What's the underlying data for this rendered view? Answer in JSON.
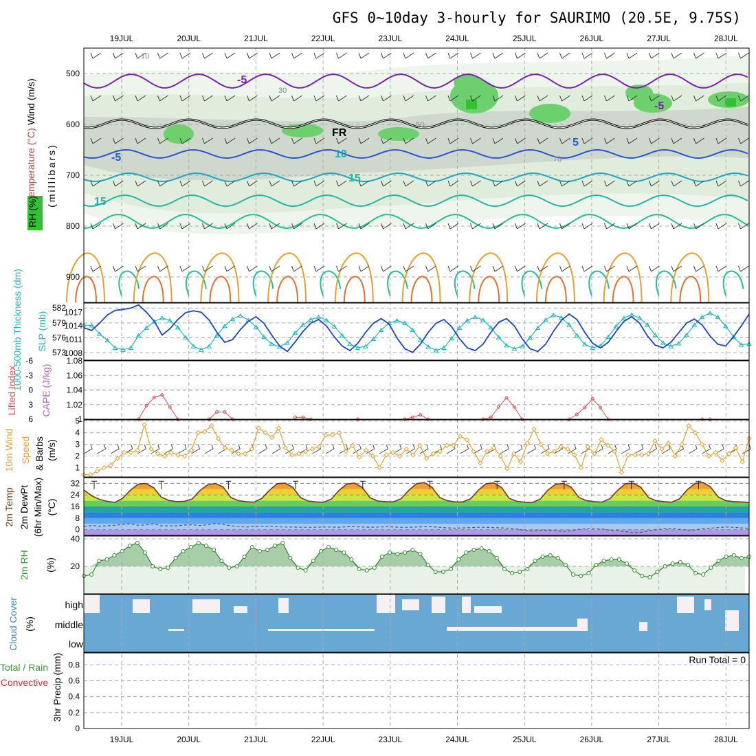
{
  "title": "GFS 0~10day 3-hourly for SAURIMO (20.5E, 9.75S)",
  "colors": {
    "thickness": "#22b5c0",
    "slp": "#1a44c8",
    "lifted_index": "#e05050",
    "wind_speed": "#e7a030",
    "barbs": "#444444",
    "rh2m": "#2e8b2e",
    "rh2m_fill": "#a9cda9",
    "cloud": "#6aa8d4",
    "dewpoint": "#555555",
    "temp_line": "#6b3b1b",
    "temp_purple": "#7040c0",
    "rh_label": "#3a9a3a",
    "precip_label": "#d03030"
  },
  "chart_data": [
    {
      "type": "heatmap",
      "panel": "upper-air cross-section",
      "x_dates": [
        "19JUL",
        "20JUL",
        "21JUL",
        "22JUL",
        "23JUL",
        "24JUL",
        "25JUL",
        "26JUL",
        "27JUL",
        "28JUL"
      ],
      "ylabel": "(millibars)",
      "legend_labels": [
        "Wind (m/s)",
        "Temperature (°C)",
        "RH (%)"
      ],
      "yticks": [
        500,
        600,
        700,
        800,
        900
      ],
      "ylim": [
        1000,
        450
      ],
      "rh_contour_labels": [
        "10",
        "30",
        "50",
        "70"
      ],
      "temp_contour_labels": [
        {
          "label": "-5",
          "color": "#7a1fb0"
        },
        {
          "label": "FR",
          "color": "#000000"
        },
        {
          "label": "-5",
          "color": "#7a1fb0"
        },
        {
          "label": "-5",
          "color": "#2255dd"
        },
        {
          "label": "5",
          "color": "#2255dd"
        },
        {
          "label": "10",
          "color": "#22a5c0"
        },
        {
          "label": "15",
          "color": "#22b5a0"
        },
        {
          "label": "15",
          "color": "#22b5a0"
        }
      ]
    },
    {
      "type": "line",
      "panel": "thickness-slp",
      "ylabel_left": "1000-500mb Thickness (dm)",
      "ylabel_right": "SLP (mb)",
      "yticks_left": [
        573,
        576,
        579,
        582
      ],
      "yticks_right": [
        1008,
        1011,
        1014,
        1017
      ],
      "series": [
        {
          "name": "1000-500mb Thickness (dm)",
          "values": [
            578.6,
            578.5,
            576.8,
            575.5,
            574.0,
            573.6,
            574.0,
            576.5,
            578.0,
            579.3,
            580.0,
            579.5,
            578.1,
            576.1,
            574.3,
            573.6,
            574.3,
            576.5,
            578.4,
            579.8,
            580.5,
            579.6,
            578.2,
            576.2,
            574.8,
            574.2,
            575.0,
            577.0,
            578.6,
            579.7,
            580.2,
            579.6,
            578.3,
            576.5,
            574.8,
            574.0,
            574.3,
            575.8,
            577.6,
            579.0,
            579.5,
            579.0,
            577.6,
            575.6,
            574.2,
            573.5,
            574.0,
            575.9,
            578.0,
            579.5,
            580.2,
            579.6,
            578.1,
            576.1,
            574.5,
            573.8,
            574.3,
            576.0,
            578.0,
            579.6,
            580.6,
            580.1,
            578.6,
            576.5,
            574.7,
            574.0,
            574.4,
            576.2,
            578.3,
            580.0,
            580.7,
            580.0,
            578.6,
            576.6,
            575.0,
            574.3,
            574.9,
            576.6,
            578.6,
            580.2,
            581.0,
            580.2,
            578.4,
            576.2,
            574.6,
            574.8
          ]
        },
        {
          "name": "SLP (mb)",
          "values": [
            1013.6,
            1013.0,
            1014.6,
            1016.4,
            1017.4,
            1017.6,
            1017.9,
            1018.6,
            1017.0,
            1015.0,
            1012.0,
            1013.4,
            1015.4,
            1016.9,
            1017.3,
            1017.0,
            1015.3,
            1012.6,
            1010.4,
            1011.0,
            1013.2,
            1015.0,
            1016.0,
            1014.6,
            1012.0,
            1009.6,
            1008.4,
            1010.5,
            1012.8,
            1014.6,
            1015.4,
            1014.0,
            1011.6,
            1009.6,
            1008.6,
            1010.2,
            1012.6,
            1014.6,
            1015.6,
            1014.4,
            1011.4,
            1009.0,
            1008.2,
            1010.0,
            1012.6,
            1014.6,
            1015.4,
            1013.8,
            1011.2,
            1009.2,
            1008.6,
            1010.0,
            1012.6,
            1014.8,
            1015.6,
            1014.0,
            1011.2,
            1009.0,
            1008.4,
            1010.0,
            1012.8,
            1015.2,
            1016.6,
            1015.4,
            1012.6,
            1010.2,
            1009.2,
            1010.4,
            1012.8,
            1015.0,
            1016.0,
            1014.6,
            1011.8,
            1009.8,
            1009.2,
            1010.4,
            1012.5,
            1014.6,
            1015.5,
            1014.2,
            1011.8,
            1010.0,
            1009.6,
            1011.6,
            1014.0,
            1016.6
          ]
        }
      ]
    },
    {
      "type": "line",
      "panel": "cape-li",
      "ylabel_left": "Lifted Index",
      "ylabel_right": "CAPE (J/kg)",
      "yticks_left": [
        "-6",
        "-3",
        "0",
        "3",
        "6"
      ],
      "yticks_right": [
        "1",
        "1.02",
        "1.04",
        "1.06",
        "1.08"
      ],
      "series": [
        {
          "name": "Lifted Index",
          "values": [
            null,
            null,
            null,
            null,
            null,
            null,
            null,
            6,
            3.2,
            1.5,
            1.0,
            3.5,
            6,
            null,
            null,
            null,
            6,
            4.5,
            4.5,
            6,
            null,
            null,
            null,
            null,
            null,
            null,
            null,
            5.6,
            5.6,
            6,
            null,
            null,
            null,
            null,
            null,
            6,
            null,
            null,
            null,
            null,
            null,
            6,
            5.6,
            5.1,
            6,
            null,
            null,
            null,
            null,
            null,
            null,
            6,
            5.6,
            3.5,
            1.6,
            3.5,
            6,
            null,
            null,
            null,
            null,
            null,
            6,
            5.0,
            3.6,
            1.8,
            3.6,
            6,
            null,
            null,
            null,
            null,
            null,
            null,
            null,
            null,
            null,
            null,
            null,
            6,
            6,
            null,
            null,
            null,
            null,
            null
          ]
        }
      ]
    },
    {
      "type": "line",
      "panel": "10m-wind",
      "ylabel": "10m Wind Speed (m/s) & Barbs",
      "yticks": [
        1,
        2,
        3,
        4,
        5
      ],
      "series": [
        {
          "name": "10m Wind Speed (m/s)",
          "values": [
            0.4,
            0.4,
            0.7,
            1.0,
            1.2,
            1.8,
            2.3,
            2.3,
            2.5,
            4.7,
            2.6,
            2.2,
            2.0,
            2.3,
            2.1,
            2.0,
            2.5,
            4.0,
            4.1,
            4.6,
            3.5,
            2.7,
            2.5,
            2.2,
            2.2,
            2.6,
            4.4,
            4.0,
            3.6,
            4.4,
            2.7,
            2.1,
            2.2,
            2.4,
            2.6,
            2.8,
            3.8,
            3.8,
            4.0,
            2.4,
            2.9,
            1.9,
            2.5,
            2.0,
            1.0,
            2.1,
            2.3,
            2.0,
            2.6,
            2.1,
            2.9,
            1.8,
            2.2,
            2.4,
            2.9,
            2.9,
            3.7,
            3.4,
            2.4,
            1.4,
            2.4,
            2.7,
            2.0,
            0.9,
            2.2,
            1.5,
            3.1,
            4.3,
            3.0,
            2.2,
            2.4,
            2.8,
            2.6,
            2.1,
            1.0,
            2.8,
            2.2,
            3.4,
            2.9,
            2.4,
            0.6,
            2.1,
            2.1,
            2.1,
            2.2,
            3.3,
            2.6,
            3.1,
            2.0,
            3.0,
            4.6,
            4.0,
            3.0,
            2.0,
            2.3,
            1.6,
            2.2,
            2.7,
            1.5,
            3.5
          ]
        }
      ]
    },
    {
      "type": "area",
      "panel": "temperature",
      "ylabel": "2m Temp / 2m DewPt (6hr Min/Max) (°C)",
      "yticks": [
        0,
        8,
        16,
        24,
        32
      ],
      "series": [
        {
          "name": "2m Temp",
          "values": [
            27.5,
            23.5,
            21.0,
            19.6,
            18.8,
            21.6,
            27.2,
            31.5,
            32.0,
            29.2,
            22.5,
            20.2,
            19.4,
            19.6,
            21.2,
            27.0,
            31.0,
            32.0,
            29.6,
            22.3,
            20.0,
            19.4,
            19.0,
            21.6,
            27.3,
            31.8,
            32.2,
            29.4,
            22.2,
            19.8,
            19.2,
            19.0,
            21.2,
            27.2,
            31.6,
            32.2,
            29.2,
            22.0,
            19.8,
            19.4,
            19.2,
            21.4,
            27.2,
            31.8,
            32.6,
            29.4,
            22.2,
            20.0,
            19.2,
            19.2,
            21.4,
            27.4,
            31.8,
            32.4,
            29.2,
            21.6,
            19.6,
            19.0,
            18.8,
            21.2,
            27.4,
            31.5,
            32.0,
            29.4,
            22.2,
            20.0,
            19.4,
            19.1,
            21.4,
            27.2,
            31.8,
            32.2,
            29.4,
            22.2,
            20.0,
            19.4,
            19.0,
            21.4,
            27.6,
            32.0,
            32.8,
            29.6,
            22.6,
            20.0,
            19.4,
            19.2,
            18.9
          ]
        },
        {
          "name": "2m DewPt",
          "values": [
            2.2,
            2.8,
            2.4,
            2.6,
            3.0,
            3.6,
            4.0,
            3.0,
            3.2,
            4.0,
            2.6,
            2.6,
            2.6,
            3.2,
            3.4,
            2.8,
            3.4,
            4.2,
            3.6,
            2.6,
            2.2,
            1.8,
            2.2,
            2.4,
            2.4,
            2.0,
            1.8,
            1.8,
            1.6,
            1.6,
            1.6,
            1.8,
            1.8,
            1.6,
            2.0,
            2.0,
            1.8,
            1.6,
            1.8,
            2.0,
            1.8,
            1.6,
            1.6,
            1.8,
            2.0,
            2.0,
            1.6,
            1.2,
            1.0,
            1.2,
            1.4,
            1.6,
            1.6,
            1.4,
            1.2,
            1.0,
            0.4,
            -0.6,
            -1.0,
            -0.4,
            -0.4,
            -0.8,
            -1.2,
            -0.8,
            0.2,
            0.6,
            0.6,
            0.4,
            -0.4,
            -0.8,
            -1.4,
            -2.2,
            -1.8,
            -1.0,
            0.0,
            0.6,
            0.8,
            0.2,
            -0.4,
            -0.2,
            0.6,
            1.0,
            1.4,
            1.8,
            1.6,
            1.2,
            1.0
          ]
        }
      ]
    },
    {
      "type": "area",
      "panel": "2m-rh",
      "ylabel": "2m RH (%)",
      "yticks": [
        20,
        40
      ],
      "series": [
        {
          "name": "2m RH",
          "values": [
            13,
            14,
            24,
            25,
            28,
            31,
            35,
            37,
            30,
            20,
            18,
            19,
            26,
            31,
            34,
            37,
            35,
            32,
            24,
            19,
            20,
            27,
            34,
            31,
            32,
            35,
            37,
            26,
            19,
            17,
            24,
            31,
            34,
            32,
            30,
            25,
            18,
            17,
            19,
            27,
            30,
            29,
            30,
            32,
            29,
            21,
            16,
            16,
            18,
            25,
            30,
            32,
            33,
            31,
            26,
            18,
            15,
            16,
            18,
            24,
            27,
            28,
            26,
            21,
            14,
            13,
            15,
            21,
            24,
            25,
            25,
            22,
            17,
            13,
            12,
            16,
            20,
            22,
            23,
            21,
            15,
            14,
            19,
            24,
            27,
            28,
            26,
            27
          ]
        }
      ]
    },
    {
      "type": "bar",
      "panel": "cloud-cover",
      "ylabel": "Cloud Cover (%)",
      "levels": [
        "high",
        "middle",
        "low"
      ]
    },
    {
      "type": "bar",
      "panel": "precip",
      "ylabel": "3hr Precip (mm)",
      "legend_labels": [
        "Total / Rain",
        "Convective"
      ],
      "yticks": [
        "0",
        "0.2",
        "0.4",
        "0.6",
        "0.8"
      ],
      "annotation": "Run Total = 0"
    }
  ]
}
